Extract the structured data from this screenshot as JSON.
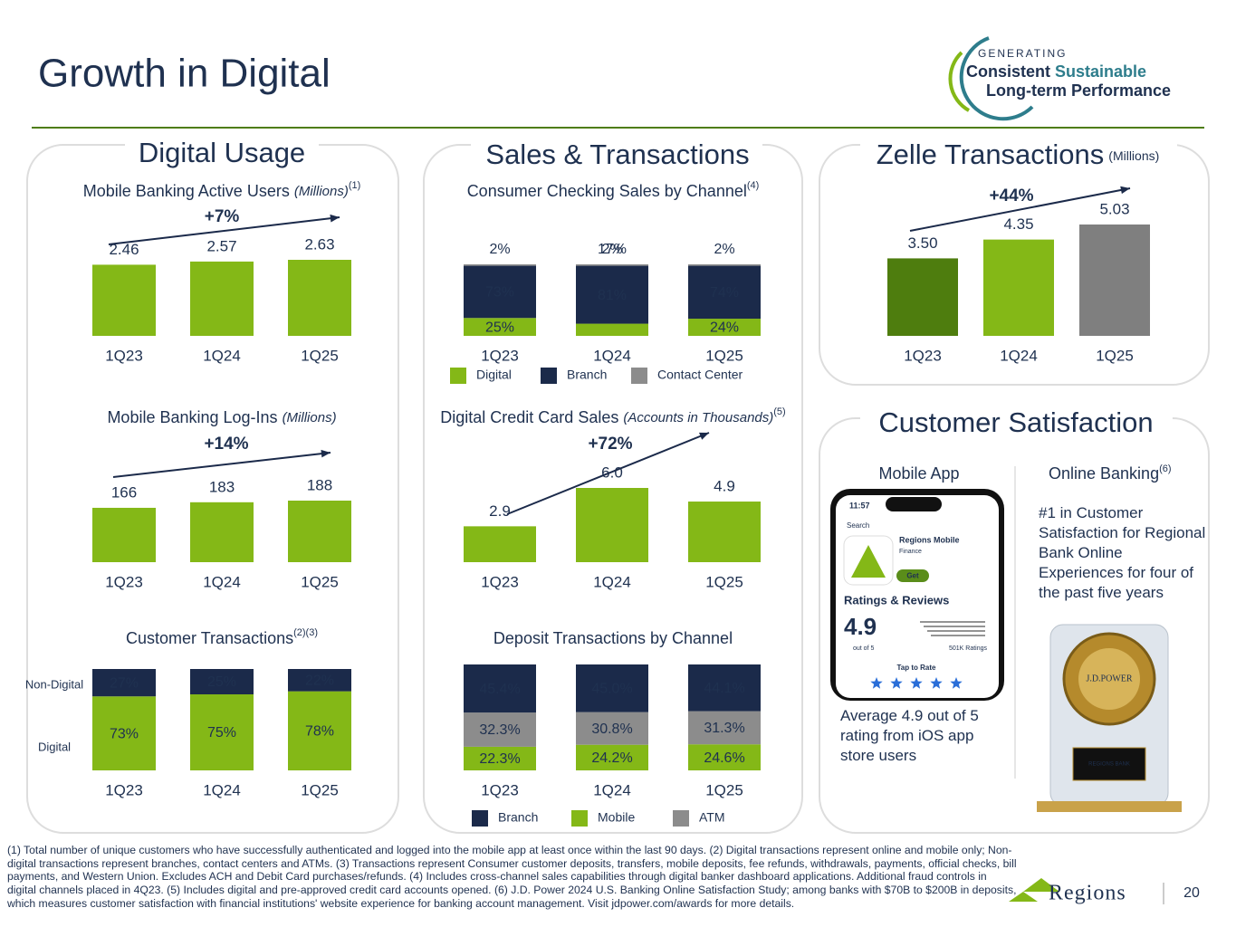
{
  "header": {
    "title": "Growth in Digital"
  },
  "logo": {
    "tagline": "GENERATING",
    "word1": "Consistent",
    "word2": "Sustainable",
    "line2": "Long-term Performance"
  },
  "panels": [
    {
      "title": "Digital Usage"
    },
    {
      "title": "Sales & Transactions"
    },
    {
      "title": "Customer Satisfaction"
    }
  ],
  "chart_data": [
    {
      "type": "bar",
      "title": "Mobile Banking Active Users",
      "subtitle": "(Millions)",
      "note": "(1)",
      "annotation": "+7%",
      "categories": [
        "1Q23",
        "1Q24",
        "1Q25"
      ],
      "values": [
        2.46,
        2.57,
        2.63
      ],
      "color": "#84b817"
    },
    {
      "type": "bar",
      "title": "Mobile Banking Log-Ins",
      "subtitle": "(Millions)",
      "annotation": "+14%",
      "categories": [
        "1Q23",
        "1Q24",
        "1Q25"
      ],
      "values": [
        166,
        183,
        188
      ],
      "color": "#84b817"
    },
    {
      "type": "stacked_bar",
      "title": "Customer Transactions",
      "note": "(2)(3)",
      "categories": [
        "1Q23",
        "1Q24",
        "1Q25"
      ],
      "legend": "left",
      "series": [
        {
          "name": "Digital",
          "color": "#84b817",
          "values": [
            73,
            75,
            78
          ],
          "value_labels": [
            "73%",
            "75%",
            "78%"
          ]
        },
        {
          "name": "Non-Digital",
          "color": "#1b2a4a",
          "values": [
            27,
            25,
            22
          ],
          "value_labels": [
            "27%",
            "25%",
            "22%"
          ]
        }
      ]
    },
    {
      "type": "stacked_bar",
      "title": "Consumer Checking Sales by Channel",
      "note": "(4)",
      "categories": [
        "1Q23",
        "1Q24",
        "1Q25"
      ],
      "legend": "bottom",
      "series": [
        {
          "name": "Digital",
          "color": "#84b817",
          "values": [
            25,
            17,
            24
          ],
          "value_labels": [
            "25%",
            "17%",
            "24%"
          ]
        },
        {
          "name": "Branch",
          "color": "#1b2a4a",
          "values": [
            73,
            81,
            74
          ],
          "value_labels": [
            "73%",
            "81%",
            "74%"
          ]
        },
        {
          "name": "Contact Center",
          "color": "#8c8c8c",
          "values": [
            2,
            2,
            2
          ],
          "value_labels": [
            "2%",
            "2%",
            "2%"
          ]
        }
      ]
    },
    {
      "type": "bar",
      "title": "Digital Credit Card Sales",
      "subtitle": "(Accounts in Thousands)",
      "note": "(5)",
      "annotation": "+72%",
      "categories": [
        "1Q23",
        "1Q24",
        "1Q25"
      ],
      "values": [
        2.9,
        6.0,
        4.9
      ],
      "value_labels": [
        "2.9",
        "6.0",
        "4.9"
      ],
      "color": "#84b817"
    },
    {
      "type": "stacked_bar",
      "title": "Deposit Transactions by Channel",
      "categories": [
        "1Q23",
        "1Q24",
        "1Q25"
      ],
      "legend": "bottom",
      "series": [
        {
          "name": "Mobile",
          "color": "#84b817",
          "values": [
            22.3,
            24.2,
            24.6
          ],
          "value_labels": [
            "22.3%",
            "24.2%",
            "24.6%"
          ]
        },
        {
          "name": "ATM",
          "color": "#8c8c8c",
          "values": [
            32.3,
            30.8,
            31.3
          ],
          "value_labels": [
            "32.3%",
            "30.8%",
            "31.3%"
          ]
        },
        {
          "name": "Branch",
          "color": "#1b2a4a",
          "values": [
            45.4,
            45.0,
            44.1
          ],
          "value_labels": [
            "45.4%",
            "45.0%",
            "44.1%"
          ]
        }
      ]
    },
    {
      "type": "bar",
      "title": "Zelle Transactions",
      "subtitle": "(Millions)",
      "annotation": "+44%",
      "categories": [
        "1Q23",
        "1Q24",
        "1Q25"
      ],
      "values": [
        3.5,
        4.35,
        5.03
      ],
      "value_labels": [
        "3.50",
        "4.35",
        "5.03"
      ],
      "colors": [
        "#4e7d0e",
        "#84b817",
        "#7f7f7f"
      ]
    }
  ],
  "satisfaction": {
    "mobile_app": {
      "heading": "Mobile App",
      "caption": "Average 4.9 out of 5 rating from iOS app store users",
      "phone": {
        "time": "11:57",
        "back": "Search",
        "app_name": "Regions Mobile",
        "category": "Finance",
        "button": "Get",
        "section": "Ratings & Reviews",
        "rating": "4.9",
        "scale": "out of 5",
        "count": "501K Ratings",
        "tap": "Tap to Rate"
      }
    },
    "online_banking": {
      "heading": "Online Banking",
      "note": "(6)",
      "caption": "#1 in Customer Satisfaction for Regional Bank Online Experiences for four of the past five years",
      "trophy": {
        "brand": "J.D.POWER",
        "recipient": "REGIONS BANK"
      }
    }
  },
  "footer": {
    "footnote": "(1) Total number of unique customers who have successfully authenticated and logged into the mobile app at least once within the last 90 days. (2) Digital transactions represent online and mobile only; Non-digital transactions represent branches, contact centers and ATMs. (3) Transactions represent Consumer customer deposits, transfers, mobile deposits, fee refunds, withdrawals, payments, official checks, bill payments, and Western Union. Excludes ACH and Debit Card purchases/refunds. (4) Includes cross-channel sales capabilities through digital banker dashboard applications. Additional fraud controls in digital channels placed in 4Q23. (5) Includes digital and pre-approved credit card accounts opened. (6) J.D. Power 2024 U.S. Banking Online Satisfaction Study; among banks with $70B to $200B in deposits, which measures customer satisfaction with financial institutions' website experience for banking account management. Visit jdpower.com/awards for more details.",
    "brand": "Regions",
    "page": "20"
  }
}
